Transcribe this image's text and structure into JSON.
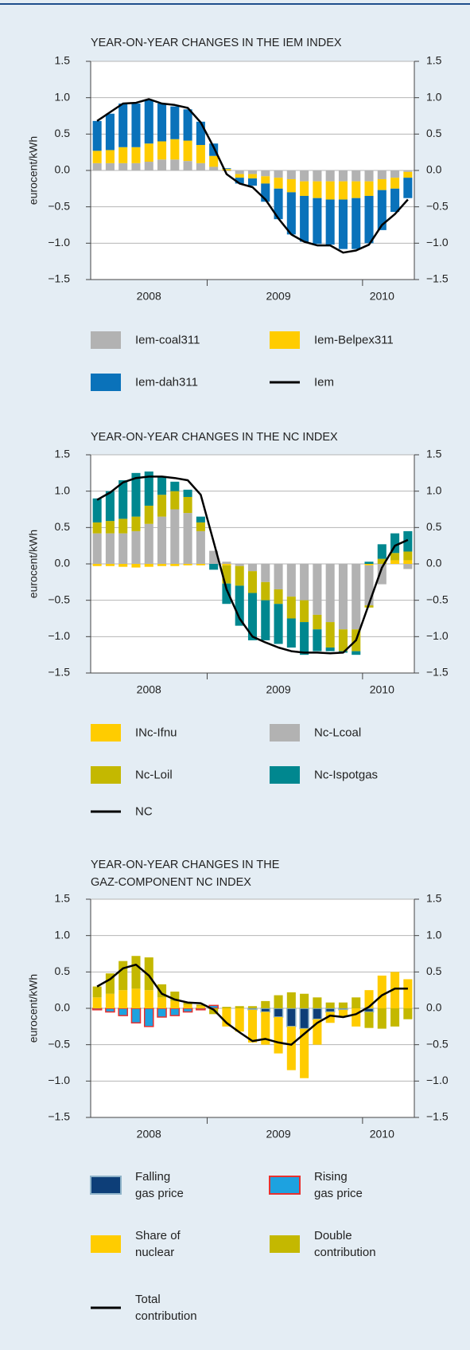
{
  "chart_data": [
    {
      "type": "bar",
      "stacked": true,
      "title": "YEAR-ON-YEAR CHANGES IN THE IEM INDEX",
      "y_label": "eurocent/kWh",
      "categories": [
        null,
        null,
        null,
        null,
        "2008",
        null,
        null,
        null,
        null,
        null,
        null,
        null,
        null,
        null,
        "2009",
        null,
        null,
        null,
        null,
        null,
        null,
        null,
        "2010",
        null,
        null
      ],
      "ylim": [
        -1.5,
        1.5
      ],
      "yticks": [
        1.5,
        {
          "value": 1,
          "label": "1.0"
        },
        0.5,
        {
          "value": 0,
          "label": "0.0"
        },
        {
          "value": -0.5,
          "label": "−0.5"
        },
        {
          "value": -1,
          "label": "−1.0"
        },
        {
          "value": -1.5,
          "label": "−1.5"
        }
      ],
      "grid": true,
      "series": [
        {
          "name": "Iem-coal311",
          "color": "#b2b2b2",
          "values": [
            0.1,
            0.1,
            0.1,
            0.1,
            0.12,
            0.15,
            0.15,
            0.13,
            0.1,
            0.05,
            -0.01,
            -0.05,
            -0.05,
            -0.08,
            -0.1,
            -0.12,
            -0.15,
            -0.15,
            -0.15,
            -0.15,
            -0.15,
            -0.15,
            -0.12,
            -0.1,
            -0.02
          ]
        },
        {
          "name": "Iem-Belpex311",
          "color": "#ffcc00",
          "values": [
            0.17,
            0.18,
            0.22,
            0.22,
            0.25,
            0.25,
            0.28,
            0.28,
            0.25,
            0.15,
            0.02,
            -0.05,
            -0.06,
            -0.1,
            -0.15,
            -0.18,
            -0.2,
            -0.23,
            -0.25,
            -0.25,
            -0.23,
            -0.2,
            -0.15,
            -0.15,
            -0.08
          ]
        },
        {
          "name": "Iem-dah311",
          "color": "#0a72ba",
          "values": [
            0.41,
            0.5,
            0.6,
            0.6,
            0.6,
            0.52,
            0.45,
            0.43,
            0.32,
            0.17,
            0.01,
            -0.08,
            -0.1,
            -0.25,
            -0.42,
            -0.58,
            -0.63,
            -0.63,
            -0.62,
            -0.68,
            -0.7,
            -0.65,
            -0.55,
            -0.32,
            -0.28
          ]
        },
        {
          "name": "Iem",
          "type": "line",
          "color": "#000000",
          "values": [
            0.68,
            0.8,
            0.92,
            0.93,
            0.98,
            0.92,
            0.9,
            0.86,
            0.66,
            0.32,
            -0.05,
            -0.18,
            -0.23,
            -0.4,
            -0.66,
            -0.88,
            -0.98,
            -1.03,
            -1.03,
            -1.13,
            -1.1,
            -1.02,
            -0.75,
            -0.6,
            -0.4
          ]
        }
      ]
    },
    {
      "type": "bar",
      "stacked": true,
      "title": "YEAR-ON-YEAR CHANGES IN THE NC INDEX",
      "y_label": "eurocent/kWh",
      "categories": [
        null,
        null,
        null,
        null,
        "2008",
        null,
        null,
        null,
        null,
        null,
        null,
        null,
        null,
        null,
        "2009",
        null,
        null,
        null,
        null,
        null,
        null,
        null,
        "2010",
        null,
        null
      ],
      "ylim": [
        -1.5,
        1.5
      ],
      "yticks": [
        1.5,
        {
          "value": 1,
          "label": "1.0"
        },
        0.5,
        {
          "value": 0,
          "label": "0.0"
        },
        {
          "value": -0.5,
          "label": "−0.5"
        },
        {
          "value": -1,
          "label": "−1.0"
        },
        {
          "value": -1.5,
          "label": "−1.5"
        }
      ],
      "grid": true,
      "series": [
        {
          "name": "INc-Ifnu",
          "color": "#ffcc00",
          "values": [
            -0.03,
            -0.03,
            -0.04,
            -0.05,
            -0.04,
            -0.03,
            -0.03,
            -0.02,
            -0.02,
            0,
            -0.02,
            0,
            0,
            0,
            0,
            0,
            0,
            0,
            0,
            0,
            0,
            -0.02,
            0,
            0.05,
            0.05
          ]
        },
        {
          "name": "Nc-Lcoal",
          "color": "#b2b2b2",
          "values": [
            0.42,
            0.42,
            0.42,
            0.45,
            0.55,
            0.65,
            0.75,
            0.7,
            0.45,
            0.18,
            0.03,
            -0.03,
            -0.1,
            -0.25,
            -0.35,
            -0.45,
            -0.5,
            -0.7,
            -0.8,
            -0.9,
            -0.9,
            -0.55,
            -0.28,
            0,
            -0.07
          ]
        },
        {
          "name": "Nc-Loil",
          "color": "#c4b800",
          "values": [
            0.15,
            0.17,
            0.2,
            0.2,
            0.25,
            0.3,
            0.25,
            0.22,
            0.12,
            0,
            -0.25,
            -0.27,
            -0.3,
            -0.25,
            -0.2,
            -0.3,
            -0.3,
            -0.2,
            -0.35,
            -0.3,
            -0.3,
            -0.03,
            0.07,
            0.1,
            0.12
          ]
        },
        {
          "name": "Nc-Ispotgas",
          "color": "#00878f",
          "values": [
            0.33,
            0.41,
            0.53,
            0.6,
            0.47,
            0.25,
            0.13,
            0.1,
            0.08,
            -0.08,
            -0.28,
            -0.55,
            -0.65,
            -0.55,
            -0.55,
            -0.4,
            -0.45,
            -0.3,
            -0.05,
            -0.02,
            -0.05,
            0.03,
            0.2,
            0.27,
            0.28
          ]
        },
        {
          "name": "NC",
          "type": "line",
          "color": "#000000",
          "values": [
            0.88,
            0.98,
            1.12,
            1.18,
            1.2,
            1.2,
            1.18,
            1.15,
            0.95,
            0.3,
            -0.35,
            -0.75,
            -1.0,
            -1.08,
            -1.15,
            -1.2,
            -1.22,
            -1.22,
            -1.23,
            -1.22,
            -1.05,
            -0.55,
            -0.05,
            0.25,
            0.33
          ]
        }
      ]
    },
    {
      "type": "bar",
      "stacked": true,
      "title": "YEAR-ON-YEAR CHANGES IN THE\nGAZ-COMPONENT NC INDEX",
      "y_label": "eurocent/kWh",
      "categories": [
        null,
        null,
        null,
        null,
        "2008",
        null,
        null,
        null,
        null,
        null,
        null,
        null,
        null,
        null,
        "2009",
        null,
        null,
        null,
        null,
        null,
        null,
        null,
        "2010",
        null,
        null
      ],
      "ylim": [
        -1.5,
        1.5
      ],
      "yticks": [
        1.5,
        {
          "value": 1,
          "label": "1.0"
        },
        0.5,
        {
          "value": 0,
          "label": "0.0"
        },
        {
          "value": -0.5,
          "label": "−0.5"
        },
        {
          "value": -1,
          "label": "−1.0"
        },
        {
          "value": -1.5,
          "label": "−1.5"
        }
      ],
      "grid": true,
      "series": [
        {
          "name": "Falling\ngas price",
          "color": "#0d3e78",
          "edgecolor": "#8fb3c9",
          "values": [
            0,
            0,
            0,
            0,
            0,
            0,
            0,
            0,
            0,
            0,
            0,
            0,
            -0.02,
            -0.05,
            -0.12,
            -0.25,
            -0.28,
            -0.15,
            -0.05,
            -0.02,
            0,
            -0.05,
            0,
            0,
            0
          ]
        },
        {
          "name": "Rising\ngas price",
          "color": "#1da2e0",
          "edgecolor": "#e8312f",
          "values": [
            -0.02,
            -0.05,
            -0.1,
            -0.2,
            -0.25,
            -0.12,
            -0.1,
            -0.05,
            -0.02,
            0.04,
            0,
            0,
            0,
            0,
            0,
            0,
            0,
            0,
            0,
            0,
            0,
            0,
            0,
            0,
            0
          ]
        },
        {
          "name": "Share of\nnuclear",
          "color": "#ffcc00",
          "values": [
            0.15,
            0.2,
            0.25,
            0.27,
            0.25,
            0.15,
            0.1,
            0.05,
            0.03,
            0,
            -0.25,
            -0.32,
            -0.45,
            -0.45,
            -0.5,
            -0.6,
            -0.68,
            -0.35,
            -0.15,
            -0.1,
            -0.25,
            0.25,
            0.45,
            0.5,
            0.4
          ]
        },
        {
          "name": "Double\ncontribution",
          "color": "#c4b800",
          "values": [
            0.15,
            0.28,
            0.4,
            0.45,
            0.45,
            0.18,
            0.13,
            0.03,
            0.02,
            -0.08,
            0.02,
            0.03,
            0.03,
            0.1,
            0.18,
            0.22,
            0.2,
            0.15,
            0.08,
            0.08,
            0.15,
            -0.22,
            -0.28,
            -0.25,
            -0.15
          ]
        },
        {
          "name": "Total\ncontribution",
          "type": "line",
          "color": "#000000",
          "values": [
            0.3,
            0.4,
            0.55,
            0.6,
            0.45,
            0.2,
            0.12,
            0.08,
            0.07,
            -0.02,
            -0.2,
            -0.33,
            -0.45,
            -0.42,
            -0.47,
            -0.5,
            -0.35,
            -0.2,
            -0.1,
            -0.12,
            -0.08,
            0.02,
            0.18,
            0.27,
            0.27
          ]
        }
      ]
    }
  ]
}
